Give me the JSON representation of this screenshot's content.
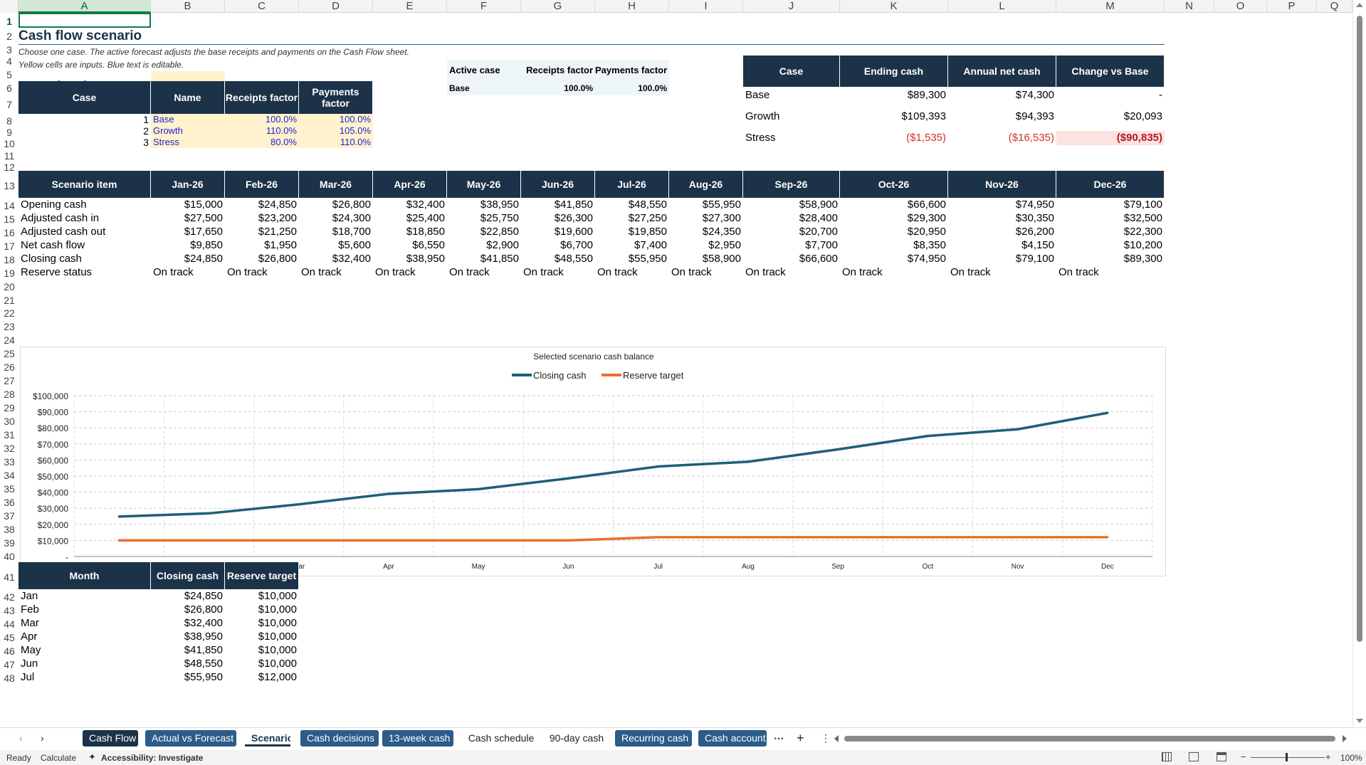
{
  "columns": [
    "A",
    "B",
    "C",
    "D",
    "E",
    "F",
    "G",
    "H",
    "I",
    "J",
    "K",
    "L",
    "M",
    "N",
    "O",
    "P",
    "Q"
  ],
  "rows": [
    "1",
    "2",
    "3",
    "4",
    "5",
    "6",
    "7",
    "8",
    "9",
    "10",
    "11",
    "12",
    "13",
    "14",
    "15",
    "16",
    "17",
    "18",
    "19",
    "20",
    "21",
    "22",
    "23",
    "24",
    "25",
    "26",
    "27",
    "28",
    "29",
    "30",
    "31",
    "32",
    "33",
    "34",
    "35",
    "36",
    "37",
    "38",
    "39",
    "40",
    "41",
    "42",
    "43",
    "44",
    "45",
    "46",
    "47",
    "48"
  ],
  "title": "Cash flow scenario",
  "subtitle1": "Choose one case. The active forecast adjusts the base receipts and payments on the Cash Flow sheet.",
  "subtitle2": "Yellow cells are inputs. Blue text is editable.",
  "case_selected": {
    "label": "Case selected",
    "value": "1"
  },
  "active_case": {
    "headers": [
      "Active case",
      "Receipts factor",
      "Payments factor"
    ],
    "values": [
      "Base",
      "100.0%",
      "100.0%"
    ]
  },
  "cases_table": {
    "headers": [
      "Case",
      "Name",
      "Receipts factor",
      "Payments factor"
    ],
    "rows": [
      [
        "1",
        "Base",
        "100.0%",
        "100.0%"
      ],
      [
        "2",
        "Growth",
        "110.0%",
        "105.0%"
      ],
      [
        "3",
        "Stress",
        "80.0%",
        "110.0%"
      ]
    ]
  },
  "summary": {
    "headers": [
      "Case",
      "Ending cash",
      "Annual net cash",
      "Change vs Base"
    ],
    "rows": [
      [
        "Base",
        "$89,300",
        "$74,300",
        "-"
      ],
      [
        "Growth",
        "$109,393",
        "$94,393",
        "$20,093"
      ],
      [
        "Stress",
        "($1,535)",
        "($16,535)",
        "($90,835)"
      ]
    ]
  },
  "scenario": {
    "headers": [
      "Scenario item",
      "Jan-26",
      "Feb-26",
      "Mar-26",
      "Apr-26",
      "May-26",
      "Jun-26",
      "Jul-26",
      "Aug-26",
      "Sep-26",
      "Oct-26",
      "Nov-26",
      "Dec-26"
    ],
    "rows": [
      [
        "Opening cash",
        "$15,000",
        "$24,850",
        "$26,800",
        "$32,400",
        "$38,950",
        "$41,850",
        "$48,550",
        "$55,950",
        "$58,900",
        "$66,600",
        "$74,950",
        "$79,100"
      ],
      [
        "Adjusted cash in",
        "$27,500",
        "$23,200",
        "$24,300",
        "$25,400",
        "$25,750",
        "$26,300",
        "$27,250",
        "$27,300",
        "$28,400",
        "$29,300",
        "$30,350",
        "$32,500"
      ],
      [
        "Adjusted cash out",
        "$17,650",
        "$21,250",
        "$18,700",
        "$18,850",
        "$22,850",
        "$19,600",
        "$19,850",
        "$24,350",
        "$20,700",
        "$20,950",
        "$26,200",
        "$22,300"
      ],
      [
        "Net cash flow",
        "$9,850",
        "$1,950",
        "$5,600",
        "$6,550",
        "$2,900",
        "$6,700",
        "$7,400",
        "$2,950",
        "$7,700",
        "$8,350",
        "$4,150",
        "$10,200"
      ],
      [
        "Closing cash",
        "$24,850",
        "$26,800",
        "$32,400",
        "$38,950",
        "$41,850",
        "$48,550",
        "$55,950",
        "$58,900",
        "$66,600",
        "$74,950",
        "$79,100",
        "$89,300"
      ],
      [
        "Reserve status",
        "On track",
        "On track",
        "On track",
        "On track",
        "On track",
        "On track",
        "On track",
        "On track",
        "On track",
        "On track",
        "On track",
        "On track"
      ]
    ]
  },
  "chart_data": {
    "type": "line",
    "title": "Selected scenario cash balance",
    "categories": [
      "Jan",
      "Feb",
      "Mar",
      "Apr",
      "May",
      "Jun",
      "Jul",
      "Aug",
      "Sep",
      "Oct",
      "Nov",
      "Dec"
    ],
    "series": [
      {
        "name": "Closing cash",
        "color": "#1f5f7a",
        "values": [
          24850,
          26800,
          32400,
          38950,
          41850,
          48550,
          55950,
          58900,
          66600,
          74950,
          79100,
          89300
        ]
      },
      {
        "name": "Reserve target",
        "color": "#e8702a",
        "values": [
          10000,
          10000,
          10000,
          10000,
          10000,
          10000,
          12000,
          12000,
          12000,
          12000,
          12000,
          12000
        ]
      }
    ],
    "yticks": [
      "$100,000",
      "$90,000",
      "$80,000",
      "$70,000",
      "$60,000",
      "$50,000",
      "$40,000",
      "$30,000",
      "$20,000",
      "$10,000",
      "-"
    ],
    "ylim": [
      0,
      100000
    ],
    "legend": "top",
    "grid": true
  },
  "month_table": {
    "headers": [
      "Month",
      "Closing cash",
      "Reserve target"
    ],
    "rows": [
      [
        "Jan",
        "$24,850",
        "$10,000"
      ],
      [
        "Feb",
        "$26,800",
        "$10,000"
      ],
      [
        "Mar",
        "$32,400",
        "$10,000"
      ],
      [
        "Apr",
        "$38,950",
        "$10,000"
      ],
      [
        "May",
        "$41,850",
        "$10,000"
      ],
      [
        "Jun",
        "$48,550",
        "$10,000"
      ],
      [
        "Jul",
        "$55,950",
        "$12,000"
      ]
    ]
  },
  "tabs": [
    {
      "label": "Cash Flow",
      "style": "dark"
    },
    {
      "label": "Actual vs Forecast",
      "style": "blue"
    },
    {
      "label": "Scenario",
      "style": "active"
    },
    {
      "label": "Cash decisions",
      "style": "blue"
    },
    {
      "label": "13-week cash",
      "style": "blue"
    },
    {
      "label": "Cash schedule",
      "style": "plain"
    },
    {
      "label": "90-day cash",
      "style": "plain"
    },
    {
      "label": "Recurring cash",
      "style": "blue"
    },
    {
      "label": "Cash account",
      "style": "blue"
    }
  ],
  "status": {
    "ready": "Ready",
    "calculate": "Calculate",
    "accessibility": "Accessibility: Investigate",
    "zoom": "100%"
  }
}
